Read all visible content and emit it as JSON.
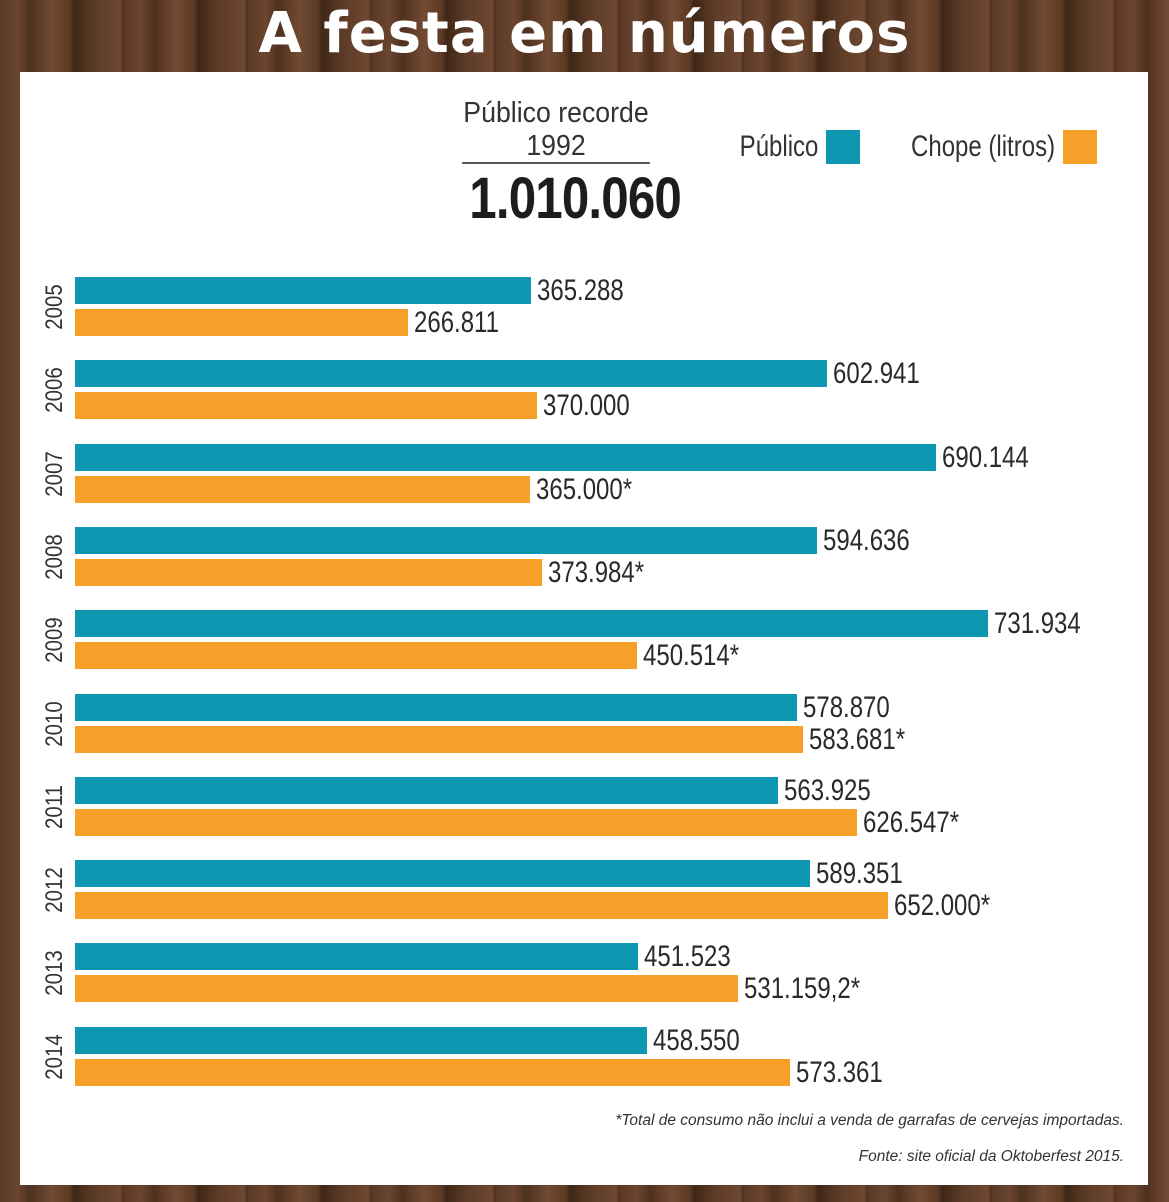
{
  "title": "A festa em números",
  "record": {
    "label": "Público recorde",
    "year": "1992",
    "value": "1.010.060"
  },
  "colors": {
    "publico": "#0e97b1",
    "chope": "#f6a02a"
  },
  "chart_data": {
    "type": "bar",
    "orientation": "horizontal",
    "title": "A festa em números",
    "categories": [
      "2005",
      "2006",
      "2007",
      "2008",
      "2009",
      "2010",
      "2011",
      "2012",
      "2013",
      "2014"
    ],
    "series": [
      {
        "name": "Público",
        "values": [
          365288,
          602941,
          690144,
          594636,
          731934,
          578870,
          563925,
          589351,
          451523,
          458550
        ],
        "labels": [
          "365.288",
          "602.941",
          "690.144",
          "594.636",
          "731.934",
          "578.870",
          "563.925",
          "589.351",
          "451.523",
          "458.550"
        ]
      },
      {
        "name": "Chope (litros)",
        "values": [
          266811,
          370000,
          365000,
          373984,
          450514,
          583681,
          626547,
          652000,
          531159.2,
          573361
        ],
        "labels": [
          "266.811",
          "370.000",
          "365.000*",
          "373.984*",
          "450.514*",
          "583.681*",
          "626.547*",
          "652.000*",
          "531.159,2*",
          "573.361"
        ]
      }
    ],
    "legend": "top-right",
    "grid": false
  },
  "footnote": "*Total de consumo não inclui a venda de garrafas de cervejas importadas.",
  "source": "Fonte: site oficial da Oktoberfest 2015."
}
